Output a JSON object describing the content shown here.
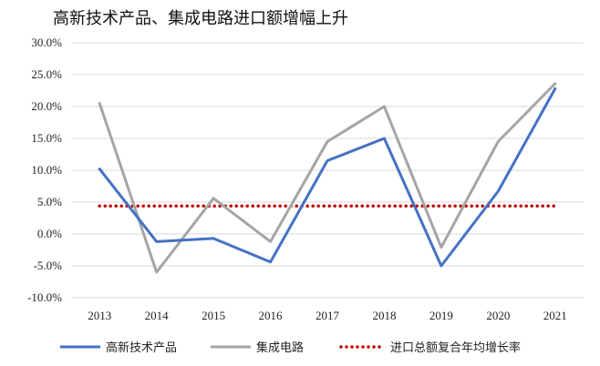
{
  "chart_data": {
    "type": "line",
    "title": "高新技术产品、集成电路进口额增幅上升",
    "x": [
      "2013",
      "2014",
      "2015",
      "2016",
      "2017",
      "2018",
      "2019",
      "2020",
      "2021"
    ],
    "ylim": [
      -10,
      30
    ],
    "yticks": [
      "30.0%",
      "25.0%",
      "20.0%",
      "15.0%",
      "10.0%",
      "5.0%",
      "0.0%",
      "-5.0%",
      "-10.0%"
    ],
    "ytick_values": [
      30,
      25,
      20,
      15,
      10,
      5,
      0,
      -5,
      -10
    ],
    "grid": true,
    "legend_position": "bottom",
    "series": [
      {
        "name": "高新技术产品",
        "color": "#4472C4",
        "style": "solid",
        "values": [
          10.2,
          -1.2,
          -0.7,
          -4.4,
          11.5,
          15.0,
          -5.0,
          6.7,
          22.8
        ]
      },
      {
        "name": "集成电路",
        "color": "#A5A5A5",
        "style": "solid",
        "values": [
          20.5,
          -6.0,
          5.6,
          -1.2,
          14.5,
          20.0,
          -2.1,
          14.5,
          23.6
        ]
      },
      {
        "name": "进口总额复合年均增长率",
        "color": "#C00000",
        "style": "dotted",
        "values": [
          4.4,
          4.4,
          4.4,
          4.4,
          4.4,
          4.4,
          4.4,
          4.4,
          4.4
        ]
      }
    ]
  }
}
